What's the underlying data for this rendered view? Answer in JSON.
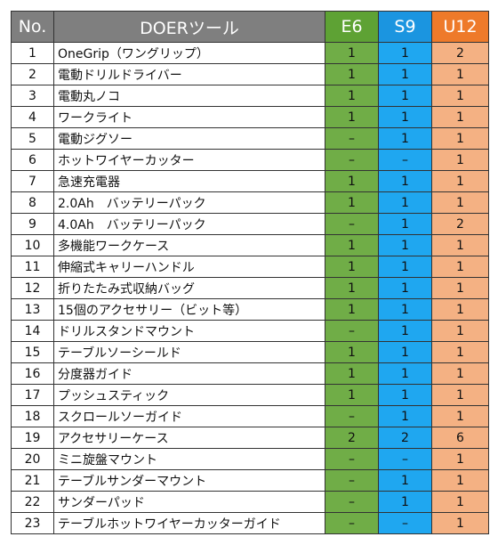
{
  "table": {
    "header": [
      "No.",
      "DOERツール",
      "E6",
      "S9",
      "U12"
    ],
    "rows": [
      [
        1,
        "OneGrip（ワングリップ）",
        1,
        1,
        2
      ],
      [
        2,
        "電動ドリルドライバー",
        1,
        1,
        1
      ],
      [
        3,
        "電動丸ノコ",
        1,
        1,
        1
      ],
      [
        4,
        "ワークライト",
        1,
        1,
        1
      ],
      [
        5,
        "電動ジグソー",
        "–",
        1,
        1
      ],
      [
        6,
        "ホットワイヤーカッター",
        "–",
        "–",
        1
      ],
      [
        7,
        "急速充電器",
        1,
        1,
        1
      ],
      [
        8,
        "2.0Ah　バッテリーパック",
        1,
        1,
        1
      ],
      [
        9,
        "4.0Ah　バッテリーパック",
        "–",
        1,
        2
      ],
      [
        10,
        "多機能ワークケース",
        1,
        1,
        1
      ],
      [
        11,
        "伸縮式キャリーハンドル",
        1,
        1,
        1
      ],
      [
        12,
        "折りたたみ式収納バッグ",
        1,
        1,
        1
      ],
      [
        13,
        "15個のアクセサリー（ビット等）",
        1,
        1,
        1
      ],
      [
        14,
        "ドリルスタンドマウント",
        "–",
        1,
        1
      ],
      [
        15,
        "テーブルソーシールド",
        1,
        1,
        1
      ],
      [
        16,
        "分度器ガイド",
        1,
        1,
        1
      ],
      [
        17,
        "プッシュスティック",
        1,
        1,
        1
      ],
      [
        18,
        "スクロールソーガイド",
        "–",
        1,
        1
      ],
      [
        19,
        "アクセサリーケース",
        2,
        2,
        6
      ],
      [
        20,
        "ミニ旋盤マウント",
        "–",
        "–",
        1
      ],
      [
        21,
        "テーブルサンダーマウント",
        "–",
        1,
        1
      ],
      [
        22,
        "サンダーパッド",
        "–",
        1,
        1
      ],
      [
        23,
        "テーブルホットワイヤーカッターガイド",
        "–",
        "–",
        1
      ]
    ]
  }
}
